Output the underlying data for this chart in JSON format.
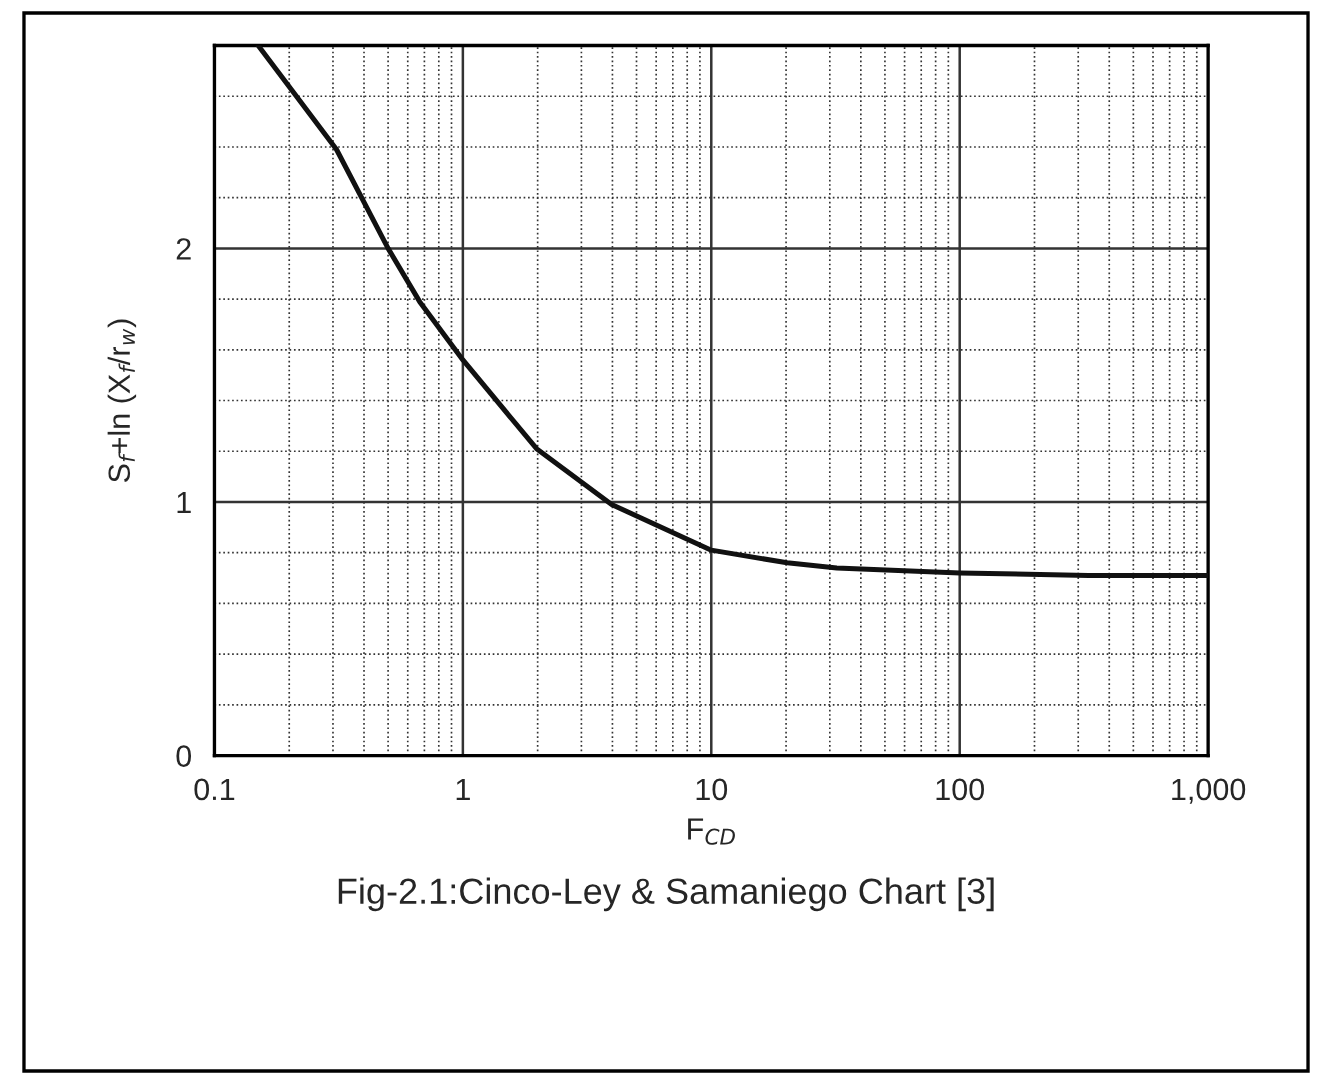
{
  "chart_data": {
    "type": "line",
    "xlabel": "F$_{CD}$",
    "ylabel": "S$_{f}$+ln (X$_{f}$/r$_{w}$)",
    "annotations": [
      "Fig-2.1:Cinco-Ley & Samaniego Chart [3]"
    ],
    "log": "x",
    "grid": true,
    "marker": "none",
    "line_style": "solid",
    "xlim": [
      0.1,
      1000
    ],
    "xticks": [
      0.1,
      1,
      10,
      100,
      {
        "value": 1000,
        "label": "1,000"
      }
    ],
    "ylim": [
      0,
      2.8
    ],
    "yticks": [
      0,
      1,
      2
    ],
    "series": [
      {
        "color": "#111111",
        "x": [
          0.15,
          0.31,
          0.5,
          0.67,
          1,
          1.98,
          3.97,
          10,
          20.2,
          32,
          100,
          330,
          1000
        ],
        "values": [
          2.8,
          2.39,
          2.0,
          1.79,
          1.56,
          1.21,
          0.99,
          0.81,
          0.76,
          0.74,
          0.72,
          0.71,
          0.71
        ]
      }
    ]
  }
}
